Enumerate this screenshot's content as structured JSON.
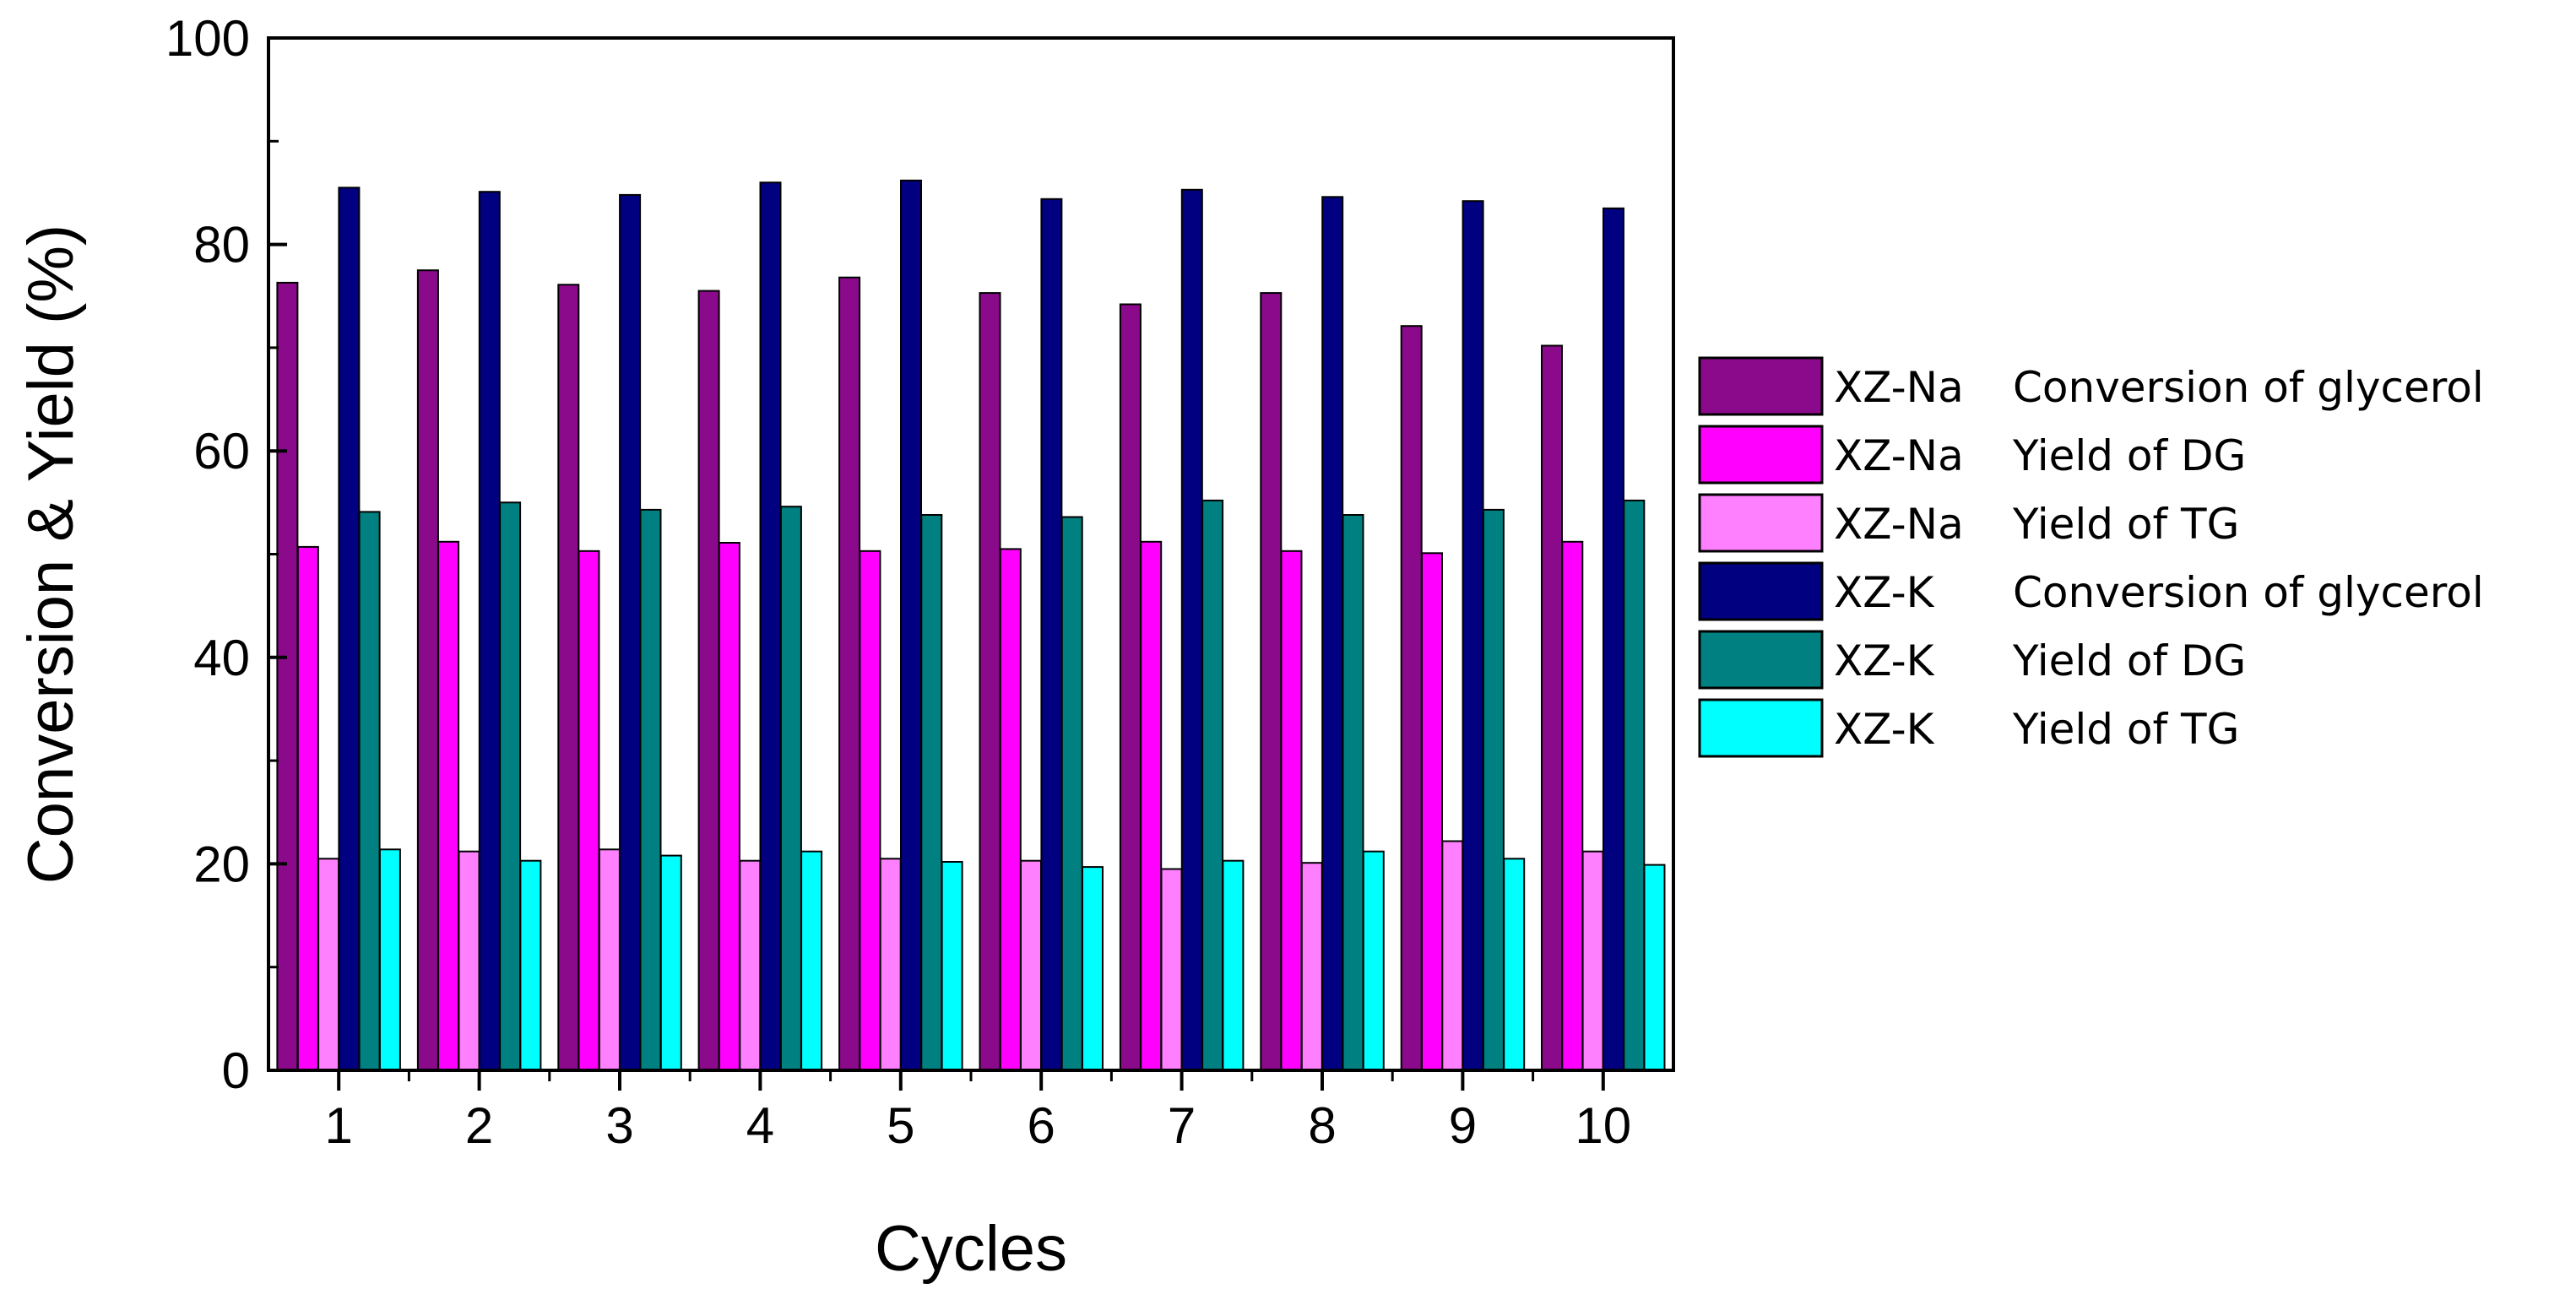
{
  "chart_data": {
    "type": "bar",
    "xlabel": "Cycles",
    "ylabel": "Conversion & Yield (%)",
    "ylim": [
      0,
      100
    ],
    "yticks": [
      "0",
      "20",
      "40",
      "60",
      "80",
      "100"
    ],
    "categories": [
      "1",
      "2",
      "3",
      "4",
      "5",
      "6",
      "7",
      "8",
      "9",
      "10"
    ],
    "grid": false,
    "legend_position": "right",
    "series": [
      {
        "catalyst": "XZ-Na",
        "measure": "Conversion of glycerol",
        "color": "#8B0A8B",
        "values": [
          76.3,
          77.5,
          76.1,
          75.5,
          76.8,
          75.3,
          74.2,
          75.3,
          72.1,
          70.2
        ]
      },
      {
        "catalyst": "XZ-Na",
        "measure": "Yield of DG",
        "color": "#FF00FF",
        "values": [
          50.7,
          51.2,
          50.3,
          51.1,
          50.3,
          50.5,
          51.2,
          50.3,
          50.1,
          51.2
        ]
      },
      {
        "catalyst": "XZ-Na",
        "measure": "Yield of TG",
        "color": "#FF80FF",
        "values": [
          20.5,
          21.2,
          21.4,
          20.3,
          20.5,
          20.3,
          19.5,
          20.1,
          22.2,
          21.2
        ]
      },
      {
        "catalyst": "XZ-K",
        "measure": "Conversion of glycerol",
        "color": "#000080",
        "values": [
          85.5,
          85.1,
          84.8,
          86.0,
          86.2,
          84.4,
          85.3,
          84.6,
          84.2,
          83.5
        ]
      },
      {
        "catalyst": "XZ-K",
        "measure": "Yield of DG",
        "color": "#008080",
        "values": [
          54.1,
          55.0,
          54.3,
          54.6,
          53.8,
          53.6,
          55.2,
          53.8,
          54.3,
          55.2
        ]
      },
      {
        "catalyst": "XZ-K",
        "measure": "Yield of TG",
        "color": "#00FFFF",
        "values": [
          21.4,
          20.3,
          20.8,
          21.2,
          20.2,
          19.7,
          20.3,
          21.2,
          20.5,
          19.9
        ]
      }
    ]
  }
}
